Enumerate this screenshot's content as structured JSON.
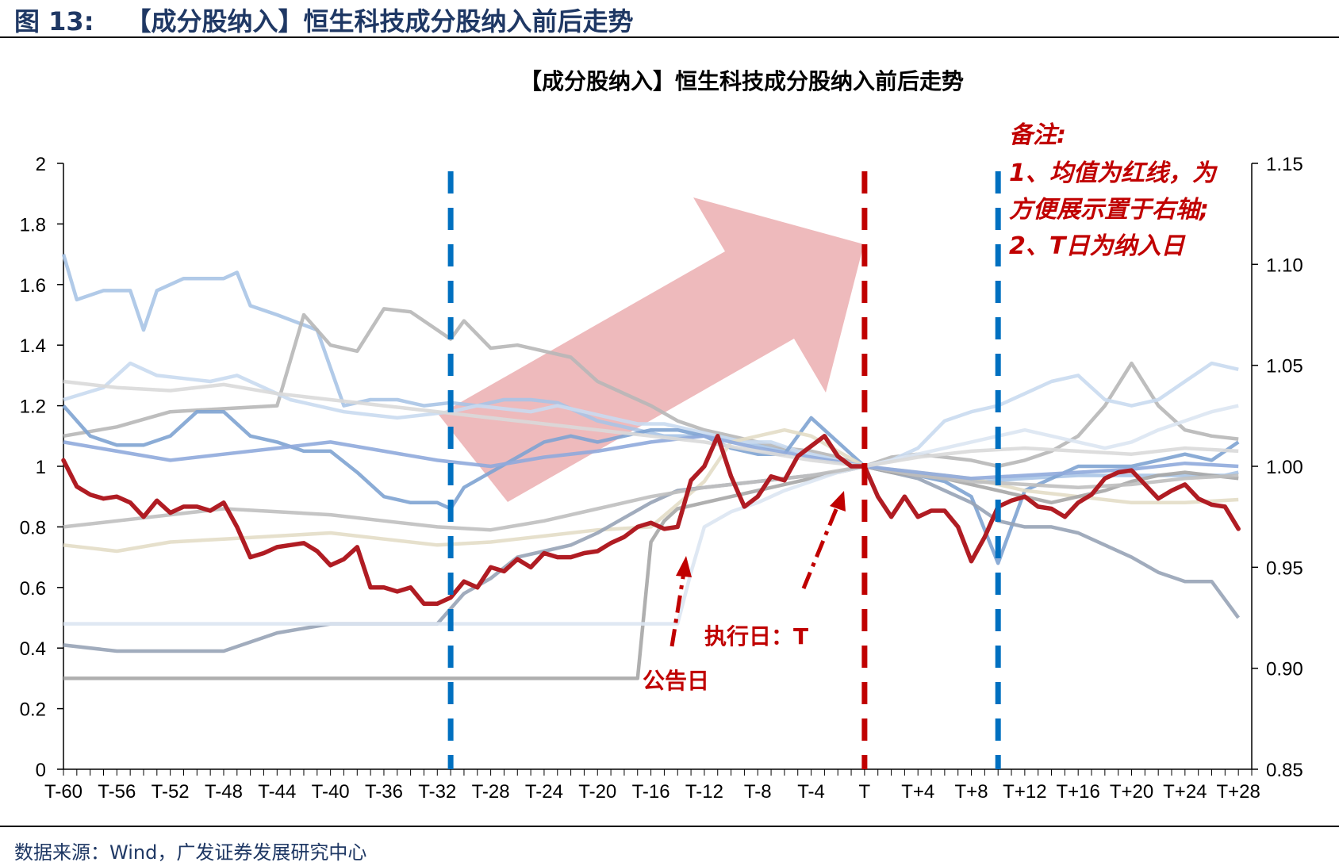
{
  "figure": {
    "label": "图",
    "number": "13:",
    "title": "【成分股纳入】恒生科技成分股纳入前后走势"
  },
  "source": "数据来源：Wind，广发证券发展研究中心",
  "chart_data": {
    "type": "line",
    "title": "【成分股纳入】恒生科技成分股纳入前后走势",
    "x_ticks": [
      "T-60",
      "T-56",
      "T-52",
      "T-48",
      "T-44",
      "T-40",
      "T-36",
      "T-32",
      "T-28",
      "T-24",
      "T-20",
      "T-16",
      "T-12",
      "T-8",
      "T-4",
      "T",
      "T+4",
      "T+8",
      "T+12",
      "T+16",
      "T+20",
      "T+24",
      "T+28"
    ],
    "x_range": [
      -60,
      29
    ],
    "y_left": {
      "ticks": [
        "2",
        "1.8",
        "1.6",
        "1.4",
        "1.2",
        "1",
        "0.8",
        "0.6",
        "0.4",
        "0.2",
        "0"
      ],
      "range": [
        0,
        2
      ]
    },
    "y_right": {
      "ticks": [
        "1.15",
        "1.10",
        "1.05",
        "1.00",
        "0.95",
        "0.90",
        "0.85"
      ],
      "range": [
        0.85,
        1.15
      ]
    },
    "vlines": [
      {
        "x": -31,
        "color": "#0070c0",
        "style": "dashed"
      },
      {
        "x": 0,
        "color": "#c00000",
        "style": "dashed"
      },
      {
        "x": 10,
        "color": "#0070c0",
        "style": "dashed"
      }
    ],
    "notes": {
      "title": "备注:",
      "line1a": "1、均值为红线，为",
      "line1b": "方便展示置于右轴;",
      "line2": "2、T日为纳入日"
    },
    "annotations": {
      "announcement": "公告日",
      "execution": "执行日：T"
    },
    "mean_series": {
      "name": "均值",
      "axis": "right",
      "color": "#b01c23",
      "x": [
        -60,
        -59,
        -58,
        -57,
        -56,
        -55,
        -54,
        -53,
        -52,
        -51,
        -50,
        -49,
        -48,
        -47,
        -46,
        -45,
        -44,
        -43,
        -42,
        -41,
        -40,
        -39,
        -38,
        -37,
        -36,
        -35,
        -34,
        -33,
        -32,
        -31,
        -30,
        -29,
        -28,
        -27,
        -26,
        -25,
        -24,
        -23,
        -22,
        -21,
        -20,
        -19,
        -18,
        -17,
        -16,
        -15,
        -14,
        -13,
        -12,
        -11,
        -10,
        -9,
        -8,
        -7,
        -6,
        -5,
        -4,
        -3,
        -2,
        -1,
        0,
        1,
        2,
        3,
        4,
        5,
        6,
        7,
        8,
        9,
        10,
        11,
        12,
        13,
        14,
        15,
        16,
        17,
        18,
        19,
        20,
        21,
        22,
        23,
        24,
        25,
        26,
        27,
        28
      ],
      "values": [
        1.003,
        0.99,
        0.986,
        0.984,
        0.985,
        0.982,
        0.975,
        0.983,
        0.977,
        0.98,
        0.98,
        0.978,
        0.982,
        0.97,
        0.955,
        0.957,
        0.96,
        0.961,
        0.962,
        0.958,
        0.951,
        0.954,
        0.96,
        0.94,
        0.94,
        0.938,
        0.94,
        0.932,
        0.932,
        0.935,
        0.943,
        0.94,
        0.95,
        0.948,
        0.954,
        0.95,
        0.957,
        0.955,
        0.955,
        0.957,
        0.958,
        0.962,
        0.965,
        0.97,
        0.972,
        0.969,
        0.97,
        0.993,
        1.0,
        1.015,
        0.995,
        0.98,
        0.985,
        0.995,
        0.993,
        1.005,
        1.01,
        1.015,
        1.005,
        1.0,
        1.0,
        0.985,
        0.975,
        0.985,
        0.975,
        0.978,
        0.978,
        0.97,
        0.953,
        0.965,
        0.98,
        0.983,
        0.985,
        0.98,
        0.979,
        0.975,
        0.982,
        0.986,
        0.994,
        0.997,
        0.998,
        0.991,
        0.984,
        0.988,
        0.991,
        0.984,
        0.981,
        0.98,
        0.969
      ]
    },
    "constituent_series": [
      {
        "name": "s1",
        "color": "#a9c4e6",
        "x": [
          -60,
          -59,
          -57,
          -55,
          -54,
          -53,
          -51,
          -48,
          -47,
          -46,
          -44,
          -41,
          -39,
          -37,
          -35,
          -33,
          -31,
          -29,
          -27,
          -25,
          -23,
          -20,
          -17,
          -15,
          -13,
          -11,
          -9,
          -7,
          -5,
          -2,
          0,
          3,
          6,
          9,
          12,
          16,
          20,
          24,
          27,
          28
        ],
        "values": [
          1.7,
          1.55,
          1.58,
          1.58,
          1.45,
          1.58,
          1.62,
          1.62,
          1.64,
          1.53,
          1.5,
          1.45,
          1.2,
          1.22,
          1.22,
          1.2,
          1.21,
          1.2,
          1.22,
          1.22,
          1.21,
          1.15,
          1.12,
          1.1,
          1.1,
          1.1,
          1.08,
          1.06,
          1.05,
          1.02,
          1.0,
          0.98,
          0.97,
          0.95,
          0.96,
          0.97,
          0.97,
          0.97,
          0.97,
          0.98
        ]
      },
      {
        "name": "s2",
        "color": "#b7b7b7",
        "x": [
          -60,
          -56,
          -52,
          -48,
          -44,
          -42,
          -40,
          -38,
          -36,
          -34,
          -32,
          -31,
          -30,
          -28,
          -26,
          -24,
          -22,
          -20,
          -18,
          -16,
          -14,
          -12,
          -10,
          -8,
          -6,
          -4,
          -2,
          0,
          2,
          4,
          6,
          8,
          10,
          12,
          14,
          16,
          18,
          20,
          22,
          24,
          26,
          28
        ],
        "values": [
          1.1,
          1.13,
          1.18,
          1.19,
          1.2,
          1.5,
          1.4,
          1.38,
          1.52,
          1.51,
          1.45,
          1.42,
          1.48,
          1.39,
          1.4,
          1.38,
          1.36,
          1.28,
          1.24,
          1.2,
          1.15,
          1.12,
          1.1,
          1.08,
          1.06,
          1.05,
          1.03,
          1.0,
          1.03,
          1.04,
          1.03,
          1.02,
          1.0,
          1.02,
          1.05,
          1.1,
          1.2,
          1.34,
          1.2,
          1.12,
          1.1,
          1.09
        ]
      },
      {
        "name": "s3",
        "color": "#c9daf0",
        "x": [
          -60,
          -57,
          -55,
          -53,
          -51,
          -49,
          -47,
          -45,
          -43,
          -41,
          -39,
          -37,
          -35,
          -33,
          -31,
          -29,
          -27,
          -25,
          -23,
          -21,
          -19,
          -17,
          -15,
          -13,
          -11,
          -9,
          -7,
          -5,
          -3,
          -1,
          0,
          2,
          4,
          6,
          8,
          10,
          12,
          14,
          16,
          18,
          20,
          22,
          24,
          26,
          28
        ],
        "values": [
          1.22,
          1.26,
          1.34,
          1.3,
          1.29,
          1.28,
          1.3,
          1.26,
          1.22,
          1.2,
          1.18,
          1.17,
          1.16,
          1.17,
          1.18,
          1.2,
          1.19,
          1.18,
          1.2,
          1.18,
          1.16,
          1.14,
          1.14,
          1.12,
          1.1,
          1.08,
          1.08,
          1.05,
          1.03,
          1.01,
          1.0,
          1.02,
          1.06,
          1.15,
          1.18,
          1.2,
          1.24,
          1.28,
          1.3,
          1.22,
          1.2,
          1.22,
          1.28,
          1.34,
          1.32
        ]
      },
      {
        "name": "s4",
        "color": "#7ea3d1",
        "x": [
          -60,
          -58,
          -56,
          -54,
          -52,
          -50,
          -48,
          -46,
          -44,
          -42,
          -40,
          -38,
          -36,
          -34,
          -32,
          -31,
          -30,
          -28,
          -26,
          -24,
          -22,
          -20,
          -18,
          -16,
          -14,
          -12,
          -10,
          -8,
          -6,
          -4,
          -2,
          0,
          2,
          4,
          6,
          8,
          10,
          12,
          14,
          16,
          18,
          20,
          22,
          24,
          26,
          28
        ],
        "values": [
          1.2,
          1.1,
          1.07,
          1.07,
          1.1,
          1.18,
          1.18,
          1.1,
          1.08,
          1.05,
          1.05,
          0.98,
          0.9,
          0.88,
          0.88,
          0.86,
          0.93,
          0.98,
          1.03,
          1.08,
          1.1,
          1.08,
          1.1,
          1.12,
          1.12,
          1.1,
          1.06,
          1.04,
          1.04,
          1.16,
          1.08,
          1.0,
          0.98,
          0.97,
          0.95,
          0.9,
          0.68,
          0.92,
          0.96,
          1.0,
          1.0,
          1.0,
          1.02,
          1.04,
          1.02,
          1.08
        ]
      },
      {
        "name": "s5",
        "color": "#e3ddc7",
        "x": [
          -60,
          -56,
          -52,
          -48,
          -44,
          -40,
          -36,
          -32,
          -28,
          -24,
          -20,
          -16,
          -12,
          -10,
          -8,
          -6,
          -4,
          -2,
          0,
          4,
          8,
          12,
          16,
          20,
          24,
          28
        ],
        "values": [
          0.74,
          0.72,
          0.75,
          0.76,
          0.77,
          0.78,
          0.76,
          0.74,
          0.75,
          0.77,
          0.79,
          0.8,
          0.95,
          1.08,
          1.1,
          1.12,
          1.1,
          1.05,
          1.0,
          0.98,
          0.96,
          0.92,
          0.9,
          0.88,
          0.88,
          0.89
        ]
      },
      {
        "name": "s6",
        "color": "#97a3b6",
        "x": [
          -60,
          -56,
          -52,
          -48,
          -44,
          -40,
          -36,
          -32,
          -30,
          -28,
          -26,
          -24,
          -22,
          -20,
          -18,
          -16,
          -14,
          -12,
          -10,
          -8,
          -6,
          -4,
          -2,
          0,
          2,
          4,
          6,
          8,
          10,
          12,
          14,
          16,
          18,
          20,
          22,
          24,
          26,
          28
        ],
        "values": [
          0.41,
          0.39,
          0.39,
          0.39,
          0.45,
          0.48,
          0.48,
          0.48,
          0.58,
          0.63,
          0.7,
          0.72,
          0.74,
          0.78,
          0.83,
          0.88,
          0.92,
          0.93,
          0.94,
          0.95,
          0.96,
          0.97,
          0.98,
          1.0,
          0.98,
          0.96,
          0.92,
          0.88,
          0.82,
          0.8,
          0.8,
          0.78,
          0.74,
          0.7,
          0.65,
          0.62,
          0.62,
          0.5
        ]
      },
      {
        "name": "s7",
        "color": "#a6a6a6",
        "x": [
          -60,
          -56,
          -52,
          -48,
          -44,
          -40,
          -36,
          -32,
          -28,
          -24,
          -20,
          -17,
          -16,
          -15,
          -14,
          -12,
          -10,
          -8,
          -6,
          -4,
          -2,
          0,
          2,
          4,
          6,
          8,
          10,
          12,
          14,
          16,
          18,
          20,
          22,
          24,
          26,
          28
        ],
        "values": [
          0.3,
          0.3,
          0.3,
          0.3,
          0.3,
          0.3,
          0.3,
          0.3,
          0.3,
          0.3,
          0.3,
          0.3,
          0.75,
          0.82,
          0.86,
          0.88,
          0.9,
          0.92,
          0.94,
          0.96,
          0.98,
          1.0,
          0.98,
          0.97,
          0.96,
          0.94,
          0.92,
          0.9,
          0.88,
          0.9,
          0.92,
          0.95,
          0.97,
          0.98,
          0.97,
          0.96
        ]
      },
      {
        "name": "s8",
        "color": "#dce6f2",
        "x": [
          -60,
          -56,
          -52,
          -48,
          -44,
          -40,
          -36,
          -32,
          -28,
          -24,
          -20,
          -16,
          -14,
          -13,
          -12,
          -10,
          -8,
          -6,
          -4,
          -2,
          0,
          2,
          4,
          6,
          8,
          10,
          12,
          14,
          16,
          18,
          20,
          22,
          24,
          26,
          28
        ],
        "values": [
          0.48,
          0.48,
          0.48,
          0.48,
          0.48,
          0.48,
          0.48,
          0.48,
          0.48,
          0.48,
          0.48,
          0.48,
          0.48,
          0.65,
          0.8,
          0.85,
          0.88,
          0.92,
          0.95,
          0.98,
          1.0,
          1.02,
          1.04,
          1.06,
          1.08,
          1.1,
          1.12,
          1.1,
          1.08,
          1.06,
          1.08,
          1.12,
          1.15,
          1.18,
          1.2
        ]
      },
      {
        "name": "s9",
        "color": "#bfbfbf",
        "x": [
          -60,
          -56,
          -52,
          -48,
          -44,
          -40,
          -36,
          -32,
          -28,
          -24,
          -20,
          -16,
          -12,
          -8,
          -4,
          0,
          4,
          8,
          12,
          16,
          20,
          24,
          28
        ],
        "values": [
          0.8,
          0.82,
          0.84,
          0.86,
          0.85,
          0.84,
          0.82,
          0.8,
          0.79,
          0.82,
          0.86,
          0.9,
          0.93,
          0.95,
          0.97,
          1.0,
          0.97,
          0.95,
          0.94,
          0.93,
          0.94,
          0.96,
          0.97
        ]
      },
      {
        "name": "s10",
        "color": "#8faadc",
        "x": [
          -60,
          -56,
          -52,
          -48,
          -44,
          -40,
          -36,
          -32,
          -28,
          -24,
          -20,
          -16,
          -12,
          -8,
          -4,
          0,
          4,
          8,
          12,
          16,
          20,
          24,
          28
        ],
        "values": [
          1.08,
          1.05,
          1.02,
          1.04,
          1.06,
          1.08,
          1.05,
          1.02,
          1.0,
          1.03,
          1.05,
          1.08,
          1.1,
          1.06,
          1.03,
          1.0,
          0.98,
          0.96,
          0.97,
          0.98,
          0.99,
          1.01,
          1.0
        ]
      },
      {
        "name": "s11",
        "color": "#d9d9d9",
        "x": [
          -60,
          -56,
          -52,
          -48,
          -44,
          -40,
          -36,
          -32,
          -28,
          -24,
          -20,
          -16,
          -12,
          -8,
          -4,
          0,
          4,
          8,
          12,
          16,
          20,
          24,
          28
        ],
        "values": [
          1.28,
          1.26,
          1.25,
          1.27,
          1.24,
          1.22,
          1.2,
          1.18,
          1.16,
          1.14,
          1.12,
          1.1,
          1.08,
          1.05,
          1.02,
          1.0,
          1.03,
          1.05,
          1.06,
          1.05,
          1.04,
          1.06,
          1.05
        ]
      }
    ]
  }
}
